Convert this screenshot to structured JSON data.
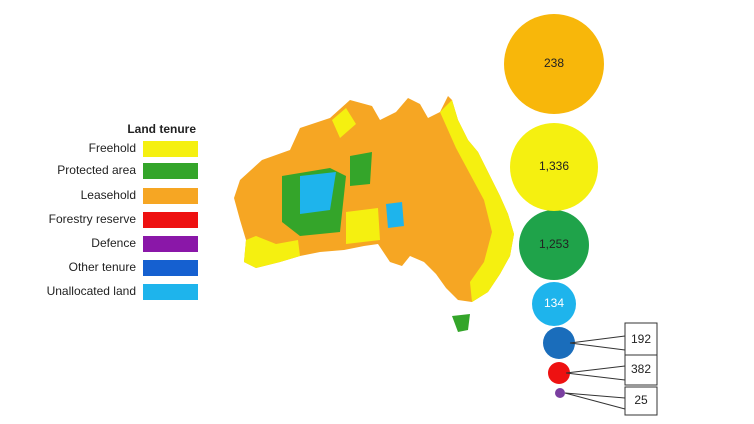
{
  "legend": {
    "title": "Land tenure",
    "items": [
      {
        "label": "Freehold",
        "color": "#f5f010"
      },
      {
        "label": "Protected area",
        "color": "#34a52a"
      },
      {
        "label": "Leasehold",
        "color": "#f6a623"
      },
      {
        "label": "Forestry reserve",
        "color": "#ee1111"
      },
      {
        "label": "Defence",
        "color": "#8a17a8"
      },
      {
        "label": "Other tenure",
        "color": "#1560d0"
      },
      {
        "label": "Unallocated land",
        "color": "#1eb4ec"
      }
    ]
  },
  "bubbles": [
    {
      "label": "238",
      "color": "#f8b70a"
    },
    {
      "label": "1,336",
      "color": "#f5f010"
    },
    {
      "label": "1,253",
      "color": "#1fa34a"
    },
    {
      "label": "134",
      "color": "#1eb4ec"
    },
    {
      "label": "192",
      "color": "#1a6dbb"
    },
    {
      "label": "382",
      "color": "#ee1111"
    },
    {
      "label": "25",
      "color": "#7a3fa0"
    }
  ]
}
